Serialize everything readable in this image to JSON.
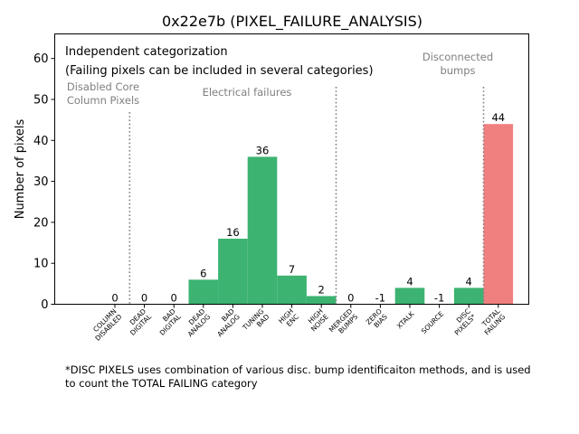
{
  "chart_data": {
    "type": "bar",
    "title": "0x22e7b (PIXEL_FAILURE_ANALYSIS)",
    "xlabel": "",
    "ylabel": "Number of pixels",
    "ylim": [
      0,
      66
    ],
    "yticks": [
      0,
      10,
      20,
      30,
      40,
      50,
      60
    ],
    "grid": false,
    "categories": [
      [
        "COLUMN",
        "DISABLED"
      ],
      [
        "DEAD",
        "DIGITAL"
      ],
      [
        "BAD",
        "DIGITAL"
      ],
      [
        "DEAD",
        "ANALOG"
      ],
      [
        "BAD",
        "ANALOG"
      ],
      [
        "TUNING",
        "BAD"
      ],
      [
        "HIGH",
        "ENC"
      ],
      [
        "HIGH",
        "NOISE"
      ],
      [
        "MERGED",
        "BUMPS"
      ],
      [
        "ZERO",
        "BIAS"
      ],
      [
        "XTALK"
      ],
      [
        "SOURCE"
      ],
      [
        "DISC",
        "PIXELS*"
      ],
      [
        "TOTAL",
        "FAILING"
      ]
    ],
    "values": [
      0,
      0,
      0,
      6,
      16,
      36,
      7,
      2,
      0,
      -1,
      4,
      -1,
      4,
      44
    ],
    "bar_colors": [
      "#3cb371",
      "#3cb371",
      "#3cb371",
      "#3cb371",
      "#3cb371",
      "#3cb371",
      "#3cb371",
      "#3cb371",
      "#3cb371",
      "#3cb371",
      "#3cb371",
      "#3cb371",
      "#3cb371",
      "#f08080"
    ],
    "separators_after_index": [
      0,
      7,
      12
    ],
    "annotations": {
      "note_line1": "Independent categorization",
      "note_line2": "(Failing pixels can be included in several categories)",
      "group_disabled": [
        "Disabled Core",
        "Column Pixels"
      ],
      "group_electrical": "Electrical failures",
      "group_disconnected": [
        "Disconnected",
        "bumps"
      ]
    },
    "footnote": [
      "*DISC PIXELS uses combination of various disc. bump identificaiton methods, and is used",
      "to count the TOTAL FAILING category"
    ]
  }
}
